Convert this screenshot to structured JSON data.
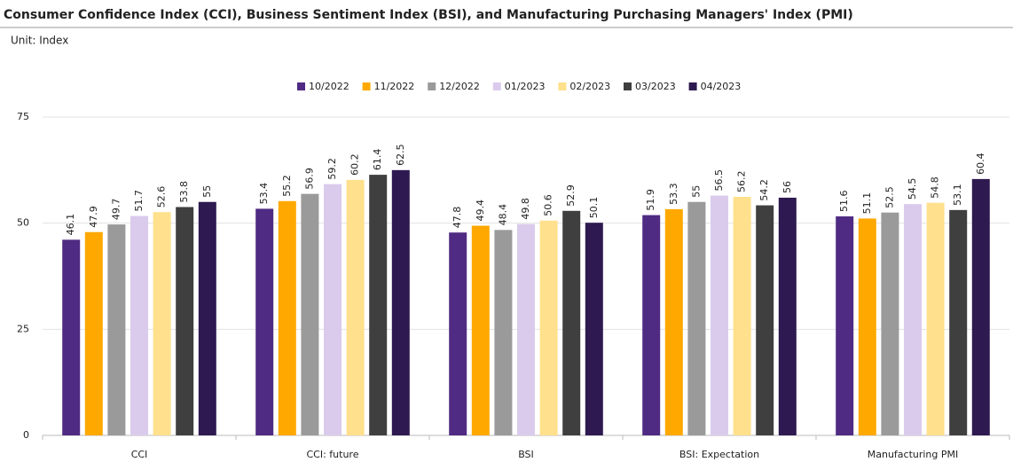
{
  "chart_data": {
    "type": "bar",
    "title": "Consumer Confidence Index (CCI), Business Sentiment Index (BSI), and Manufacturing Purchasing Managers' Index (PMI)",
    "subtitle": "Unit: Index",
    "categories": [
      "CCI",
      "CCI: future",
      "BSI",
      "BSI: Expectation",
      "Manufacturing PMI"
    ],
    "series": [
      {
        "name": "10/2022",
        "color": "#4f2b83",
        "values": [
          46.1,
          53.4,
          47.8,
          51.9,
          51.6
        ]
      },
      {
        "name": "11/2022",
        "color": "#ffa800",
        "values": [
          47.9,
          55.2,
          49.4,
          53.3,
          51.1
        ]
      },
      {
        "name": "12/2022",
        "color": "#9a9a9a",
        "values": [
          49.7,
          56.9,
          48.4,
          55,
          52.5
        ]
      },
      {
        "name": "01/2023",
        "color": "#dacbec",
        "values": [
          51.7,
          59.2,
          49.8,
          56.5,
          54.5
        ]
      },
      {
        "name": "02/2023",
        "color": "#ffe08c",
        "values": [
          52.6,
          60.2,
          50.6,
          56.2,
          54.8
        ]
      },
      {
        "name": "03/2023",
        "color": "#3f3f3f",
        "values": [
          53.8,
          61.4,
          52.9,
          54.2,
          53.1
        ]
      },
      {
        "name": "04/2023",
        "color": "#2e1950",
        "values": [
          55,
          62.5,
          50.1,
          56,
          60.4
        ]
      }
    ],
    "ylim": [
      0,
      75
    ],
    "yticks": [
      0,
      25,
      50,
      75
    ],
    "grid": true,
    "legend": "top"
  }
}
